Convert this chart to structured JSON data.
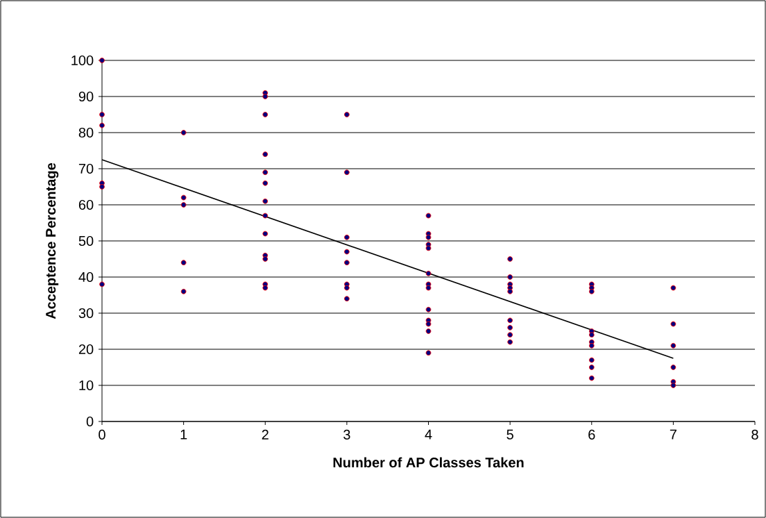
{
  "chart_data": {
    "type": "scatter",
    "xlabel": "Number of AP Classes Taken",
    "ylabel": "Acceptence Percentage",
    "xlim": [
      0,
      8
    ],
    "xticks": [
      0,
      1,
      2,
      3,
      4,
      5,
      6,
      7,
      8
    ],
    "ylim": [
      0,
      100
    ],
    "yticks": [
      0,
      10,
      20,
      30,
      40,
      50,
      60,
      70,
      80,
      90,
      100
    ],
    "grid": "y",
    "marker": "circle",
    "series": [
      {
        "color": "#000080",
        "x": [
          0,
          0,
          0,
          0,
          0,
          0,
          1,
          1,
          1,
          1,
          1,
          2,
          2,
          2,
          2,
          2,
          2,
          2,
          2,
          2,
          2,
          2,
          2,
          2,
          3,
          3,
          3,
          3,
          3,
          3,
          3,
          3,
          4,
          4,
          4,
          4,
          4,
          4,
          4,
          4,
          4,
          4,
          4,
          4,
          4,
          5,
          5,
          5,
          5,
          5,
          5,
          5,
          5,
          5,
          6,
          6,
          6,
          6,
          6,
          6,
          6,
          6,
          6,
          6,
          7,
          7,
          7,
          7,
          7,
          7
        ],
        "values": [
          100,
          85,
          82,
          66,
          65,
          38,
          80,
          62,
          60,
          44,
          36,
          91,
          90,
          85,
          74,
          69,
          66,
          61,
          57,
          52,
          46,
          45,
          38,
          37,
          85,
          69,
          51,
          47,
          44,
          38,
          37,
          34,
          57,
          52,
          51,
          49,
          48,
          41,
          38,
          37,
          31,
          28,
          27,
          25,
          19,
          45,
          40,
          38,
          37,
          36,
          28,
          26,
          24,
          22,
          38,
          37,
          36,
          25,
          24,
          22,
          21,
          17,
          15,
          12,
          37,
          27,
          21,
          15,
          11,
          10
        ]
      },
      {
        "type": "line",
        "color": "#000000",
        "marker": "none",
        "x": [
          0,
          7
        ],
        "values": [
          72.5,
          17.5
        ]
      }
    ]
  }
}
